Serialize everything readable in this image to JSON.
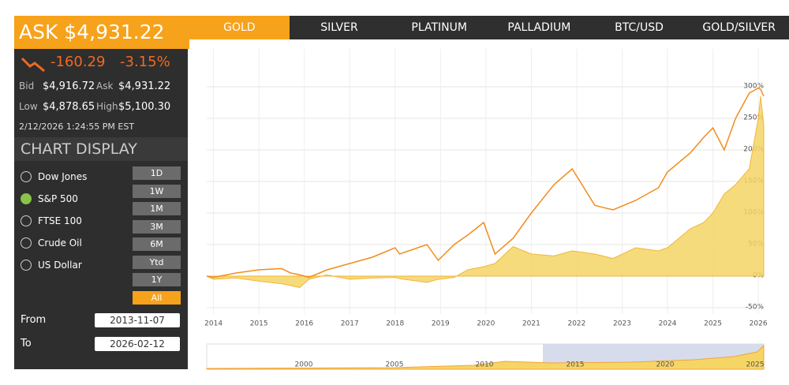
{
  "quote": {
    "ask_title": "ASK $4,931.22",
    "change": "-160.29",
    "change_pct": "-3.15%",
    "rows": [
      [
        "Bid",
        "$4,916.72",
        "Ask",
        "$4,931.22"
      ],
      [
        "Low",
        "$4,878.65",
        "High",
        "$5,100.30"
      ]
    ],
    "timestamp": "2/12/2026 1:24:55 PM EST"
  },
  "tabs": {
    "items": [
      "GOLD",
      "SILVER",
      "PLATINUM",
      "PALLADIUM",
      "BTC/USD",
      "GOLD/SILVER"
    ],
    "active": 0
  },
  "display": {
    "title": "CHART DISPLAY",
    "options": [
      "Dow Jones",
      "S&P 500",
      "FTSE 100",
      "Crude Oil",
      "US Dollar"
    ],
    "selected": 1,
    "ranges": [
      "1D",
      "1W",
      "1M",
      "3M",
      "6M",
      "Ytd",
      "1Y",
      "All"
    ],
    "range_selected": 7,
    "from_label": "From",
    "from": "2013-11-07",
    "to_label": "To",
    "to": "2026-02-12"
  },
  "chart_data": {
    "type": "line",
    "grid": true,
    "x": [
      2013.85,
      2014.0,
      2014.5,
      2015.0,
      2015.5,
      2015.7,
      2015.9,
      2016.1,
      2016.5,
      2017.0,
      2017.5,
      2018.0,
      2018.1,
      2018.7,
      2018.95,
      2019.3,
      2019.6,
      2019.95,
      2020.2,
      2020.6,
      2021.0,
      2021.5,
      2021.9,
      2022.4,
      2022.8,
      2023.3,
      2023.8,
      2024.0,
      2024.5,
      2024.8,
      2025.0,
      2025.25,
      2025.5,
      2025.8,
      2026.0,
      2026.05,
      2026.12
    ],
    "series": [
      {
        "color": "#f5d565",
        "style": "area",
        "values": [
          0,
          -5,
          -3,
          -8,
          -12,
          -15,
          -18,
          -5,
          2,
          -5,
          -3,
          -2,
          -4,
          -10,
          -5,
          -2,
          10,
          15,
          20,
          47,
          35,
          32,
          40,
          35,
          28,
          45,
          40,
          45,
          75,
          85,
          100,
          130,
          145,
          170,
          250,
          285,
          240
        ]
      },
      {
        "color": "#f28c1c",
        "style": "line",
        "values": [
          0,
          -2,
          5,
          10,
          12,
          5,
          2,
          -2,
          10,
          20,
          30,
          45,
          35,
          50,
          25,
          50,
          65,
          85,
          35,
          60,
          100,
          145,
          170,
          112,
          105,
          120,
          140,
          165,
          195,
          220,
          235,
          200,
          250,
          290,
          298,
          296,
          285
        ]
      }
    ],
    "xlim": [
      2013.85,
      2026.12
    ],
    "xticks": [
      2014,
      2015,
      2016,
      2017,
      2018,
      2019,
      2020,
      2021,
      2022,
      2023,
      2024,
      2025,
      2026
    ],
    "ylim": [
      -60,
      360
    ],
    "yticks": [
      {
        "value": -50,
        "label": "-50%"
      },
      {
        "value": 0,
        "label": "0%"
      },
      {
        "value": 50,
        "label": "50%"
      },
      {
        "value": 100,
        "label": "100%"
      },
      {
        "value": 150,
        "label": "150%"
      },
      {
        "value": 200,
        "label": "200%"
      },
      {
        "value": 250,
        "label": "250%"
      },
      {
        "value": 300,
        "label": "300%"
      }
    ]
  },
  "navigator": {
    "ticks": [
      2000,
      2005,
      2010,
      2015,
      2020,
      2025
    ]
  }
}
